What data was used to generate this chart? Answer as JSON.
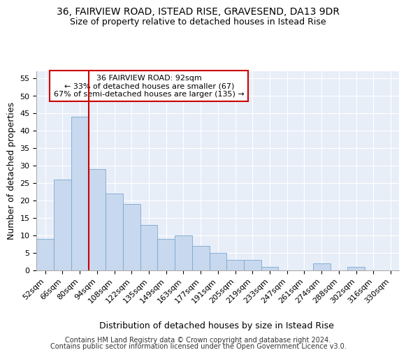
{
  "title1": "36, FAIRVIEW ROAD, ISTEAD RISE, GRAVESEND, DA13 9DR",
  "title2": "Size of property relative to detached houses in Istead Rise",
  "xlabel": "Distribution of detached houses by size in Istead Rise",
  "ylabel": "Number of detached properties",
  "footer1": "Contains HM Land Registry data © Crown copyright and database right 2024.",
  "footer2": "Contains public sector information licensed under the Open Government Licence v3.0.",
  "annotation_line1": "36 FAIRVIEW ROAD: 92sqm",
  "annotation_line2": "← 33% of detached houses are smaller (67)",
  "annotation_line3": "67% of semi-detached houses are larger (135) →",
  "bar_labels": [
    "52sqm",
    "66sqm",
    "80sqm",
    "94sqm",
    "108sqm",
    "122sqm",
    "135sqm",
    "149sqm",
    "163sqm",
    "177sqm",
    "191sqm",
    "205sqm",
    "219sqm",
    "233sqm",
    "247sqm",
    "261sqm",
    "274sqm",
    "288sqm",
    "302sqm",
    "316sqm",
    "330sqm"
  ],
  "bar_values": [
    9,
    26,
    44,
    29,
    22,
    19,
    13,
    9,
    10,
    7,
    5,
    3,
    3,
    1,
    0,
    0,
    2,
    0,
    1,
    0,
    0
  ],
  "bar_color": "#c8d8ee",
  "bar_edge_color": "#7aa8d0",
  "vline_color": "#cc0000",
  "vline_x_idx": 3.0,
  "annotation_box_edge_color": "#cc0000",
  "background_color": "#e8eef8",
  "ylim": [
    0,
    57
  ],
  "yticks": [
    0,
    5,
    10,
    15,
    20,
    25,
    30,
    35,
    40,
    45,
    50,
    55
  ],
  "grid_color": "#ffffff",
  "title1_fontsize": 10,
  "title2_fontsize": 9,
  "ylabel_fontsize": 9,
  "xlabel_fontsize": 9,
  "tick_fontsize": 8,
  "ann_fontsize": 8,
  "footer_fontsize": 7
}
